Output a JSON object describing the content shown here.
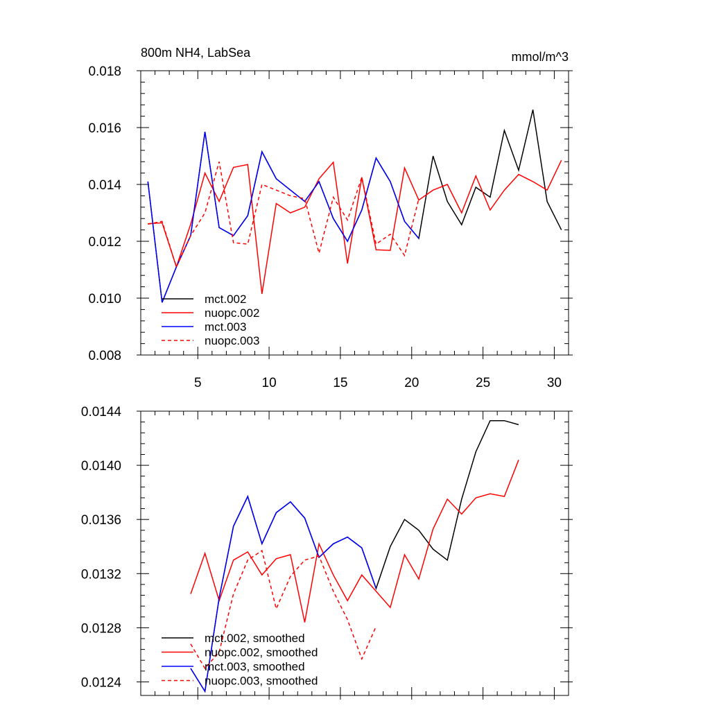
{
  "chart_data": [
    {
      "type": "line",
      "title": "800m NH4, LabSea",
      "units": "mmol/m^3",
      "xlabel": "",
      "ylabel": "",
      "xlim": [
        1,
        31
      ],
      "ylim": [
        0.008,
        0.018
      ],
      "xticks": [
        5,
        10,
        15,
        20,
        25,
        30
      ],
      "xtick_labels": [
        "5",
        "10",
        "15",
        "20",
        "25",
        "30"
      ],
      "yticks": [
        0.008,
        0.01,
        0.012,
        0.014,
        0.016,
        0.018
      ],
      "ytick_labels": [
        "0.008",
        "0.010",
        "0.012",
        "0.014",
        "0.016",
        "0.018"
      ],
      "legend": "bottom-left",
      "series": [
        {
          "name": "mct.002",
          "color": "#000000",
          "dash": "solid",
          "x": [
            1.5,
            2.5,
            3.5,
            4.5,
            5.5,
            6.5,
            7.5,
            8.5,
            9.5,
            10.5,
            11.5,
            12.5,
            13.5,
            14.5,
            15.5,
            16.5,
            17.5,
            18.5,
            19.5,
            20.5,
            21.5,
            22.5,
            23.5,
            24.5,
            25.5,
            26.5,
            27.5,
            28.5,
            29.5,
            30.5
          ],
          "values": [
            0.0141,
            0.00985,
            0.0111,
            0.0122,
            0.01585,
            0.01248,
            0.0122,
            0.0129,
            0.01515,
            0.0142,
            0.0138,
            0.0134,
            0.0141,
            0.0128,
            0.012,
            0.0131,
            0.01493,
            0.0141,
            0.0127,
            0.0121,
            0.015,
            0.0134,
            0.01258,
            0.0139,
            0.01355,
            0.0159,
            0.0145,
            0.01663,
            0.0134,
            0.0124
          ]
        },
        {
          "name": "nuopc.002",
          "color": "#ff0000",
          "dash": "solid",
          "x": [
            1.5,
            2.5,
            3.5,
            4.5,
            5.5,
            6.5,
            7.5,
            8.5,
            9.5,
            10.5,
            11.5,
            12.5,
            13.5,
            14.5,
            15.5,
            16.5,
            17.5,
            18.5,
            19.5,
            20.5,
            21.5,
            22.5,
            23.5,
            24.5,
            25.5,
            26.5,
            27.5,
            28.5,
            29.5,
            30.5
          ],
          "values": [
            0.01262,
            0.01265,
            0.0111,
            0.0126,
            0.0144,
            0.0134,
            0.0146,
            0.0147,
            0.01015,
            0.01333,
            0.013,
            0.0132,
            0.0142,
            0.01478,
            0.01122,
            0.01425,
            0.0117,
            0.01168,
            0.01458,
            0.01345,
            0.0138,
            0.014,
            0.013,
            0.0143,
            0.0131,
            0.0138,
            0.01435,
            0.0141,
            0.0138,
            0.01485
          ]
        },
        {
          "name": "mct.003",
          "color": "#0000ff",
          "dash": "solid",
          "x": [
            1.5,
            2.5,
            3.5,
            4.5,
            5.5,
            6.5,
            7.5,
            8.5,
            9.5,
            10.5,
            11.5,
            12.5,
            13.5,
            14.5,
            15.5,
            16.5,
            17.5,
            18.5,
            19.5,
            20.5
          ],
          "values": [
            0.0141,
            0.00985,
            0.0111,
            0.0122,
            0.01585,
            0.01248,
            0.0122,
            0.0129,
            0.01515,
            0.0142,
            0.0138,
            0.0134,
            0.0141,
            0.0128,
            0.012,
            0.0131,
            0.01493,
            0.0141,
            0.0127,
            0.0121
          ]
        },
        {
          "name": "nuopc.003",
          "color": "#ff0000",
          "dash": "dashed",
          "x": [
            1.5,
            2.5,
            3.5,
            4.5,
            5.5,
            6.5,
            7.5,
            8.5,
            9.5,
            10.5,
            11.5,
            12.5,
            13.5,
            14.5,
            15.5,
            16.5,
            17.5,
            18.5,
            19.5,
            20.5
          ],
          "values": [
            0.0126,
            0.0127,
            0.0111,
            0.0122,
            0.013,
            0.0148,
            0.01195,
            0.0119,
            0.014,
            0.0138,
            0.0136,
            0.0135,
            0.01158,
            0.01355,
            0.01275,
            0.01425,
            0.0119,
            0.01225,
            0.0115,
            0.0135
          ]
        }
      ]
    },
    {
      "type": "line",
      "title": "",
      "xlabel": "",
      "ylabel": "",
      "xlim": [
        1,
        31
      ],
      "ylim": [
        0.0123,
        0.0144
      ],
      "xticks": [
        5,
        10,
        15,
        20,
        25,
        30
      ],
      "xtick_labels": [],
      "yticks": [
        0.0124,
        0.0128,
        0.0132,
        0.0136,
        0.014,
        0.0144
      ],
      "ytick_labels": [
        "0.0124",
        "0.0128",
        "0.0132",
        "0.0136",
        "0.0140",
        "0.0144"
      ],
      "legend": "bottom-left",
      "series": [
        {
          "name": "mct.002, smoothed",
          "color": "#000000",
          "dash": "solid",
          "x": [
            4.5,
            5.5,
            6.5,
            7.5,
            8.5,
            9.5,
            10.5,
            11.5,
            12.5,
            13.5,
            14.5,
            15.5,
            16.5,
            17.5,
            18.5,
            19.5,
            20.5,
            21.5,
            22.5,
            23.5,
            24.5,
            25.5,
            26.5,
            27.5
          ],
          "values": [
            0.0125,
            0.01233,
            0.01302,
            0.01355,
            0.01377,
            0.01342,
            0.01365,
            0.01373,
            0.01361,
            0.01332,
            0.01342,
            0.01347,
            0.01339,
            0.01309,
            0.0134,
            0.0136,
            0.01352,
            0.01338,
            0.0133,
            0.01375,
            0.0141,
            0.01433,
            0.01433,
            0.0143
          ]
        },
        {
          "name": "nuopc.002, smoothed",
          "color": "#ff0000",
          "dash": "solid",
          "x": [
            4.5,
            5.5,
            6.5,
            7.5,
            8.5,
            9.5,
            10.5,
            11.5,
            12.5,
            13.5,
            14.5,
            15.5,
            16.5,
            17.5,
            18.5,
            19.5,
            20.5,
            21.5,
            22.5,
            23.5,
            24.5,
            25.5,
            26.5,
            27.5
          ],
          "values": [
            0.01305,
            0.01335,
            0.013,
            0.0133,
            0.01336,
            0.01319,
            0.01331,
            0.01334,
            0.01284,
            0.01342,
            0.01319,
            0.013,
            0.01319,
            0.01307,
            0.01295,
            0.01334,
            0.01316,
            0.01353,
            0.01375,
            0.01364,
            0.01376,
            0.01379,
            0.01377,
            0.01404
          ]
        },
        {
          "name": "mct.003, smoothed",
          "color": "#0000ff",
          "dash": "solid",
          "x": [
            4.5,
            5.5,
            6.5,
            7.5,
            8.5,
            9.5,
            10.5,
            11.5,
            12.5,
            13.5,
            14.5,
            15.5,
            16.5,
            17.5
          ],
          "values": [
            0.0125,
            0.01233,
            0.01302,
            0.01355,
            0.01377,
            0.01342,
            0.01365,
            0.01373,
            0.01361,
            0.01332,
            0.01342,
            0.01347,
            0.01339,
            0.01309
          ]
        },
        {
          "name": "nuopc.003, smoothed",
          "color": "#ff0000",
          "dash": "dashed",
          "x": [
            4.5,
            5.5,
            6.5,
            7.5,
            8.5,
            9.5,
            10.5,
            11.5,
            12.5,
            13.5,
            14.5,
            15.5,
            16.5,
            17.5
          ],
          "values": [
            0.01268,
            0.0125,
            0.01262,
            0.01305,
            0.0133,
            0.01337,
            0.01294,
            0.01318,
            0.0133,
            0.01333,
            0.01307,
            0.01286,
            0.01257,
            0.01281
          ]
        }
      ]
    }
  ]
}
